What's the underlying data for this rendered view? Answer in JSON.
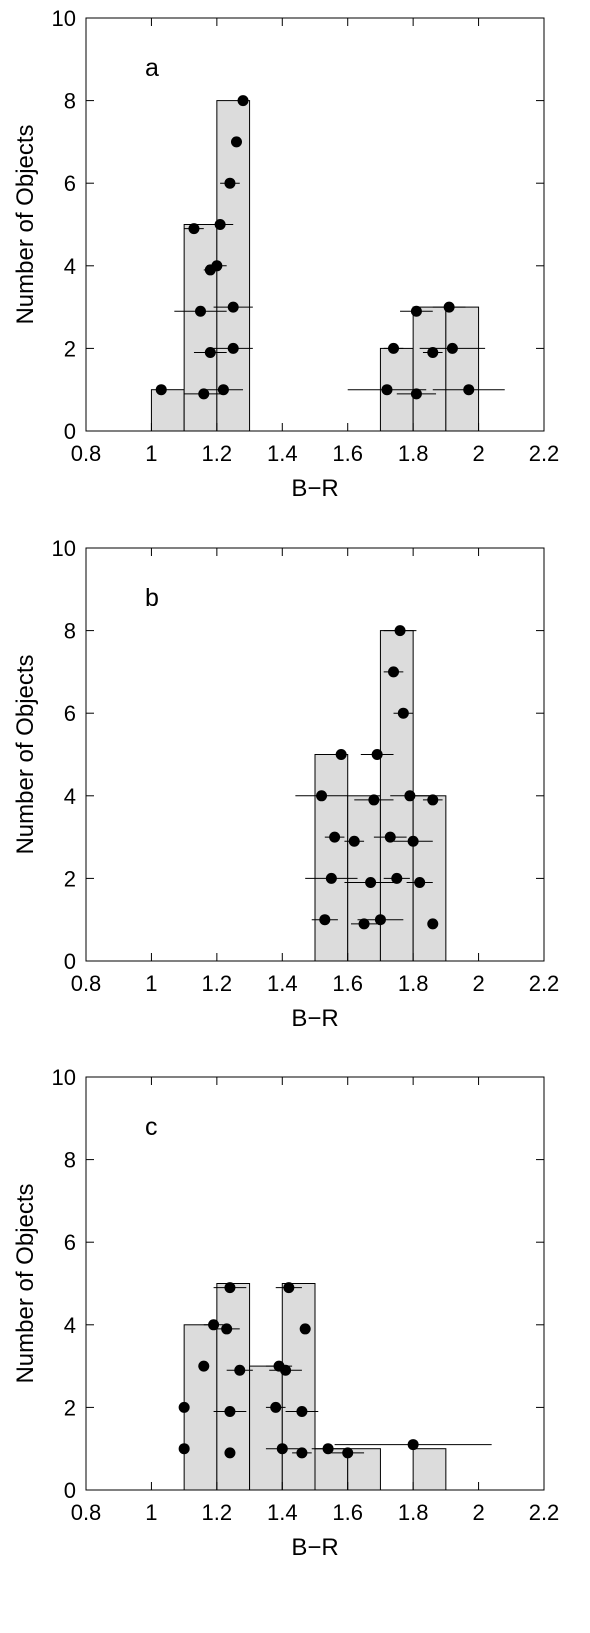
{
  "chart_data": [
    {
      "type": "bar",
      "panel_label": "a",
      "xlabel": "B−R",
      "ylabel": "Number of Objects",
      "xlim": [
        0.8,
        2.2
      ],
      "ylim": [
        0,
        10
      ],
      "xticks": [
        "0.8",
        "1",
        "1.2",
        "1.4",
        "1.6",
        "1.8",
        "2",
        "2.2"
      ],
      "yticks": [
        "0",
        "2",
        "4",
        "6",
        "8",
        "10"
      ],
      "histogram": [
        {
          "bin": [
            1.0,
            1.1
          ],
          "count": 1
        },
        {
          "bin": [
            1.1,
            1.2
          ],
          "count": 5
        },
        {
          "bin": [
            1.2,
            1.3
          ],
          "count": 8
        },
        {
          "bin": [
            1.7,
            1.8
          ],
          "count": 2
        },
        {
          "bin": [
            1.8,
            1.9
          ],
          "count": 3
        },
        {
          "bin": [
            1.9,
            2.0
          ],
          "count": 3
        }
      ],
      "points": [
        {
          "x": 1.03,
          "y": 1.0,
          "xerr": 0.0
        },
        {
          "x": 1.13,
          "y": 4.9,
          "xerr": 0.03
        },
        {
          "x": 1.15,
          "y": 2.9,
          "xerr": 0.08
        },
        {
          "x": 1.16,
          "y": 0.9,
          "xerr": 0.06
        },
        {
          "x": 1.18,
          "y": 1.9,
          "xerr": 0.05
        },
        {
          "x": 1.18,
          "y": 3.9,
          "xerr": 0.02
        },
        {
          "x": 1.2,
          "y": 4.0,
          "xerr": 0.03
        },
        {
          "x": 1.21,
          "y": 5.0,
          "xerr": 0.04
        },
        {
          "x": 1.22,
          "y": 1.0,
          "xerr": 0.06
        },
        {
          "x": 1.24,
          "y": 6.0,
          "xerr": 0.03
        },
        {
          "x": 1.25,
          "y": 3.0,
          "xerr": 0.06
        },
        {
          "x": 1.25,
          "y": 2.0,
          "xerr": 0.06
        },
        {
          "x": 1.26,
          "y": 7.0,
          "xerr": 0.01
        },
        {
          "x": 1.28,
          "y": 8.0,
          "xerr": 0.0
        },
        {
          "x": 1.72,
          "y": 1.0,
          "xerr": 0.12
        },
        {
          "x": 1.74,
          "y": 2.0,
          "xerr": 0.03
        },
        {
          "x": 1.81,
          "y": 2.9,
          "xerr": 0.05
        },
        {
          "x": 1.81,
          "y": 0.9,
          "xerr": 0.06
        },
        {
          "x": 1.86,
          "y": 1.9,
          "xerr": 0.03
        },
        {
          "x": 1.91,
          "y": 3.0,
          "xerr": 0.05
        },
        {
          "x": 1.92,
          "y": 2.0,
          "xerr": 0.1
        },
        {
          "x": 1.97,
          "y": 1.0,
          "xerr": 0.11
        }
      ]
    },
    {
      "type": "bar",
      "panel_label": "b",
      "xlabel": "B−R",
      "ylabel": "Number of Objects",
      "xlim": [
        0.8,
        2.2
      ],
      "ylim": [
        0,
        10
      ],
      "xticks": [
        "0.8",
        "1",
        "1.2",
        "1.4",
        "1.6",
        "1.8",
        "2",
        "2.2"
      ],
      "yticks": [
        "0",
        "2",
        "4",
        "6",
        "8",
        "10"
      ],
      "histogram": [
        {
          "bin": [
            1.5,
            1.6
          ],
          "count": 5
        },
        {
          "bin": [
            1.6,
            1.7
          ],
          "count": 4
        },
        {
          "bin": [
            1.7,
            1.8
          ],
          "count": 8
        },
        {
          "bin": [
            1.8,
            1.9
          ],
          "count": 4
        }
      ],
      "points": [
        {
          "x": 1.52,
          "y": 4.0,
          "xerr": 0.08
        },
        {
          "x": 1.53,
          "y": 1.0,
          "xerr": 0.04
        },
        {
          "x": 1.55,
          "y": 2.0,
          "xerr": 0.08
        },
        {
          "x": 1.56,
          "y": 3.0,
          "xerr": 0.03
        },
        {
          "x": 1.58,
          "y": 5.0,
          "xerr": 0.0
        },
        {
          "x": 1.62,
          "y": 2.9,
          "xerr": 0.03
        },
        {
          "x": 1.65,
          "y": 0.9,
          "xerr": 0.04
        },
        {
          "x": 1.67,
          "y": 1.9,
          "xerr": 0.08
        },
        {
          "x": 1.68,
          "y": 3.9,
          "xerr": 0.06
        },
        {
          "x": 1.69,
          "y": 5.0,
          "xerr": 0.05
        },
        {
          "x": 1.7,
          "y": 1.0,
          "xerr": 0.07
        },
        {
          "x": 1.73,
          "y": 3.0,
          "xerr": 0.05
        },
        {
          "x": 1.74,
          "y": 7.0,
          "xerr": 0.03
        },
        {
          "x": 1.75,
          "y": 2.0,
          "xerr": 0.04
        },
        {
          "x": 1.76,
          "y": 8.0,
          "xerr": 0.05
        },
        {
          "x": 1.77,
          "y": 6.0,
          "xerr": 0.03
        },
        {
          "x": 1.79,
          "y": 4.0,
          "xerr": 0.06
        },
        {
          "x": 1.8,
          "y": 2.9,
          "xerr": 0.06
        },
        {
          "x": 1.82,
          "y": 1.9,
          "xerr": 0.04
        },
        {
          "x": 1.86,
          "y": 3.9,
          "xerr": 0.03
        },
        {
          "x": 1.86,
          "y": 0.9,
          "xerr": 0.0
        }
      ]
    },
    {
      "type": "bar",
      "panel_label": "c",
      "xlabel": "B−R",
      "ylabel": "Number of Objects",
      "xlim": [
        0.8,
        2.2
      ],
      "ylim": [
        0,
        10
      ],
      "xticks": [
        "0.8",
        "1",
        "1.2",
        "1.4",
        "1.6",
        "1.8",
        "2",
        "2.2"
      ],
      "yticks": [
        "0",
        "2",
        "4",
        "6",
        "8",
        "10"
      ],
      "histogram": [
        {
          "bin": [
            1.1,
            1.2
          ],
          "count": 4
        },
        {
          "bin": [
            1.2,
            1.3
          ],
          "count": 5
        },
        {
          "bin": [
            1.3,
            1.4
          ],
          "count": 3
        },
        {
          "bin": [
            1.4,
            1.5
          ],
          "count": 5
        },
        {
          "bin": [
            1.5,
            1.6
          ],
          "count": 1
        },
        {
          "bin": [
            1.6,
            1.7
          ],
          "count": 1
        },
        {
          "bin": [
            1.8,
            1.9
          ],
          "count": 1
        }
      ],
      "points": [
        {
          "x": 1.1,
          "y": 2.0,
          "xerr": 0.0
        },
        {
          "x": 1.1,
          "y": 1.0,
          "xerr": 0.0
        },
        {
          "x": 1.16,
          "y": 3.0,
          "xerr": 0.0
        },
        {
          "x": 1.19,
          "y": 4.0,
          "xerr": 0.03
        },
        {
          "x": 1.23,
          "y": 3.9,
          "xerr": 0.04
        },
        {
          "x": 1.24,
          "y": 4.9,
          "xerr": 0.05
        },
        {
          "x": 1.24,
          "y": 1.9,
          "xerr": 0.05
        },
        {
          "x": 1.24,
          "y": 0.9,
          "xerr": 0.0
        },
        {
          "x": 1.27,
          "y": 2.9,
          "xerr": 0.04
        },
        {
          "x": 1.38,
          "y": 2.0,
          "xerr": 0.03
        },
        {
          "x": 1.39,
          "y": 3.0,
          "xerr": 0.04
        },
        {
          "x": 1.4,
          "y": 1.0,
          "xerr": 0.05
        },
        {
          "x": 1.41,
          "y": 2.9,
          "xerr": 0.05
        },
        {
          "x": 1.42,
          "y": 4.9,
          "xerr": 0.04
        },
        {
          "x": 1.46,
          "y": 1.9,
          "xerr": 0.05
        },
        {
          "x": 1.46,
          "y": 0.9,
          "xerr": 0.03
        },
        {
          "x": 1.47,
          "y": 3.9,
          "xerr": 0.0
        },
        {
          "x": 1.54,
          "y": 1.0,
          "xerr": 0.05
        },
        {
          "x": 1.6,
          "y": 0.9,
          "xerr": 0.05
        },
        {
          "x": 1.8,
          "y": 1.1,
          "xerr": 0.24
        }
      ]
    }
  ]
}
